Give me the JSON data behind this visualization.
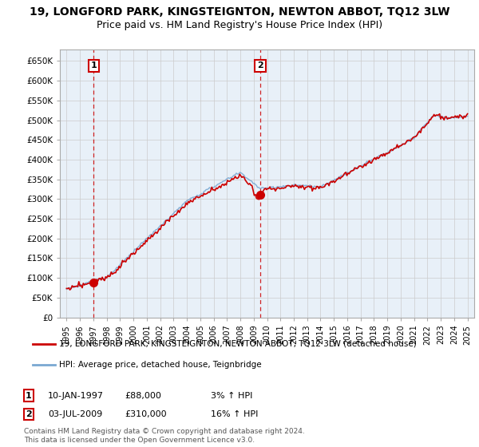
{
  "title": "19, LONGFORD PARK, KINGSTEIGNTON, NEWTON ABBOT, TQ12 3LW",
  "subtitle": "Price paid vs. HM Land Registry's House Price Index (HPI)",
  "ylabel_ticks": [
    "£0",
    "£50K",
    "£100K",
    "£150K",
    "£200K",
    "£250K",
    "£300K",
    "£350K",
    "£400K",
    "£450K",
    "£500K",
    "£550K",
    "£600K",
    "£650K"
  ],
  "ytick_values": [
    0,
    50000,
    100000,
    150000,
    200000,
    250000,
    300000,
    350000,
    400000,
    450000,
    500000,
    550000,
    600000,
    650000
  ],
  "ylim": [
    0,
    680000
  ],
  "xlim_start": 1994.5,
  "xlim_end": 2025.5,
  "xtick_years": [
    1995,
    1996,
    1997,
    1998,
    1999,
    2000,
    2001,
    2002,
    2003,
    2004,
    2005,
    2006,
    2007,
    2008,
    2009,
    2010,
    2011,
    2012,
    2013,
    2014,
    2015,
    2016,
    2017,
    2018,
    2019,
    2020,
    2021,
    2022,
    2023,
    2024,
    2025
  ],
  "sale1_x": 1997.03,
  "sale1_y": 88000,
  "sale1_label": "1",
  "sale2_x": 2009.5,
  "sale2_y": 310000,
  "sale2_label": "2",
  "vline1_x": 1997.03,
  "vline2_x": 2009.5,
  "red_color": "#cc0000",
  "blue_color": "#7aa8d2",
  "vline_color": "#cc0000",
  "grid_color": "#cccccc",
  "plot_bg_color": "#e8f0f8",
  "background_color": "#ffffff",
  "legend_label_red": "19, LONGFORD PARK, KINGSTEIGNTON, NEWTON ABBOT, TQ12 3LW (detached house)",
  "legend_label_blue": "HPI: Average price, detached house, Teignbridge",
  "annotation1_date": "10-JAN-1997",
  "annotation1_price": "£88,000",
  "annotation1_hpi": "3% ↑ HPI",
  "annotation2_date": "03-JUL-2009",
  "annotation2_price": "£310,000",
  "annotation2_hpi": "16% ↑ HPI",
  "footer": "Contains HM Land Registry data © Crown copyright and database right 2024.\nThis data is licensed under the Open Government Licence v3.0.",
  "title_fontsize": 10,
  "subtitle_fontsize": 9
}
